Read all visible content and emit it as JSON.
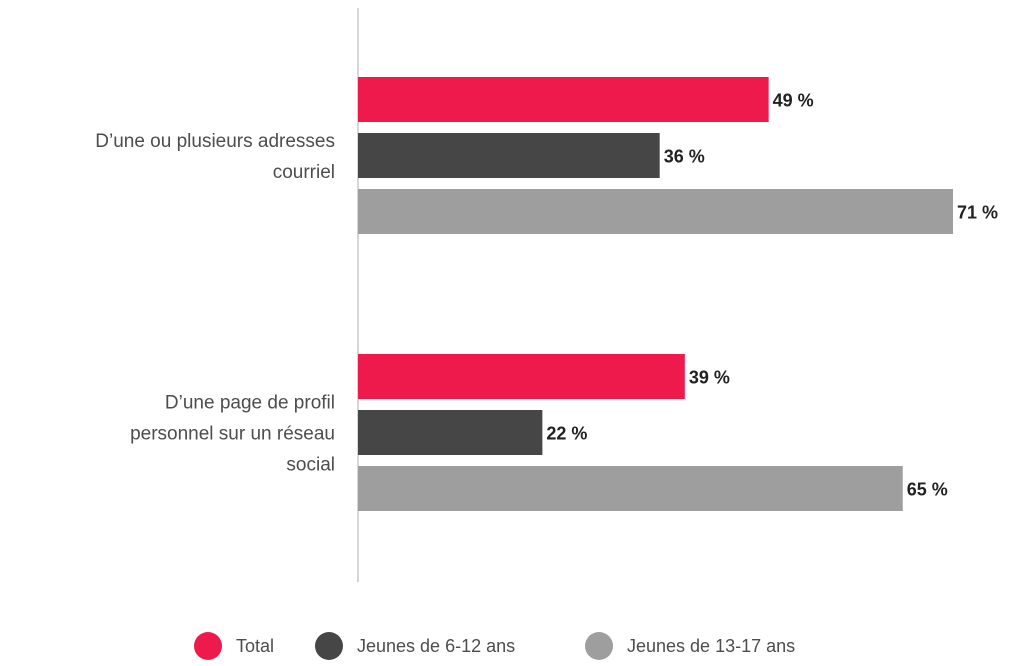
{
  "chart_data": {
    "type": "bar",
    "orientation": "horizontal",
    "categories": [
      "D’une ou plusieurs adresses courriel",
      "D’une page de profil personnel sur un réseau social"
    ],
    "category_lines": [
      [
        "D’une ou plusieurs adresses",
        "courriel"
      ],
      [
        "D’une page de profil",
        "personnel sur un réseau",
        "social"
      ]
    ],
    "series": [
      {
        "name": "Total",
        "values": [
          49,
          39
        ],
        "labels": [
          "49 %",
          "39 %"
        ],
        "color": "#ee1a4b"
      },
      {
        "name": "Jeunes de 6-12 ans",
        "values": [
          36,
          22
        ],
        "labels": [
          "36 %",
          "22 %"
        ],
        "color": "#464646"
      },
      {
        "name": "Jeunes de 13-17 ans",
        "values": [
          71,
          65
        ],
        "labels": [
          "71 %",
          "65 %"
        ],
        "color": "#9e9e9e"
      }
    ],
    "xlim": [
      0,
      71
    ],
    "axis_color": "#c8c8c8",
    "grid": false,
    "legend_position": "bottom"
  }
}
